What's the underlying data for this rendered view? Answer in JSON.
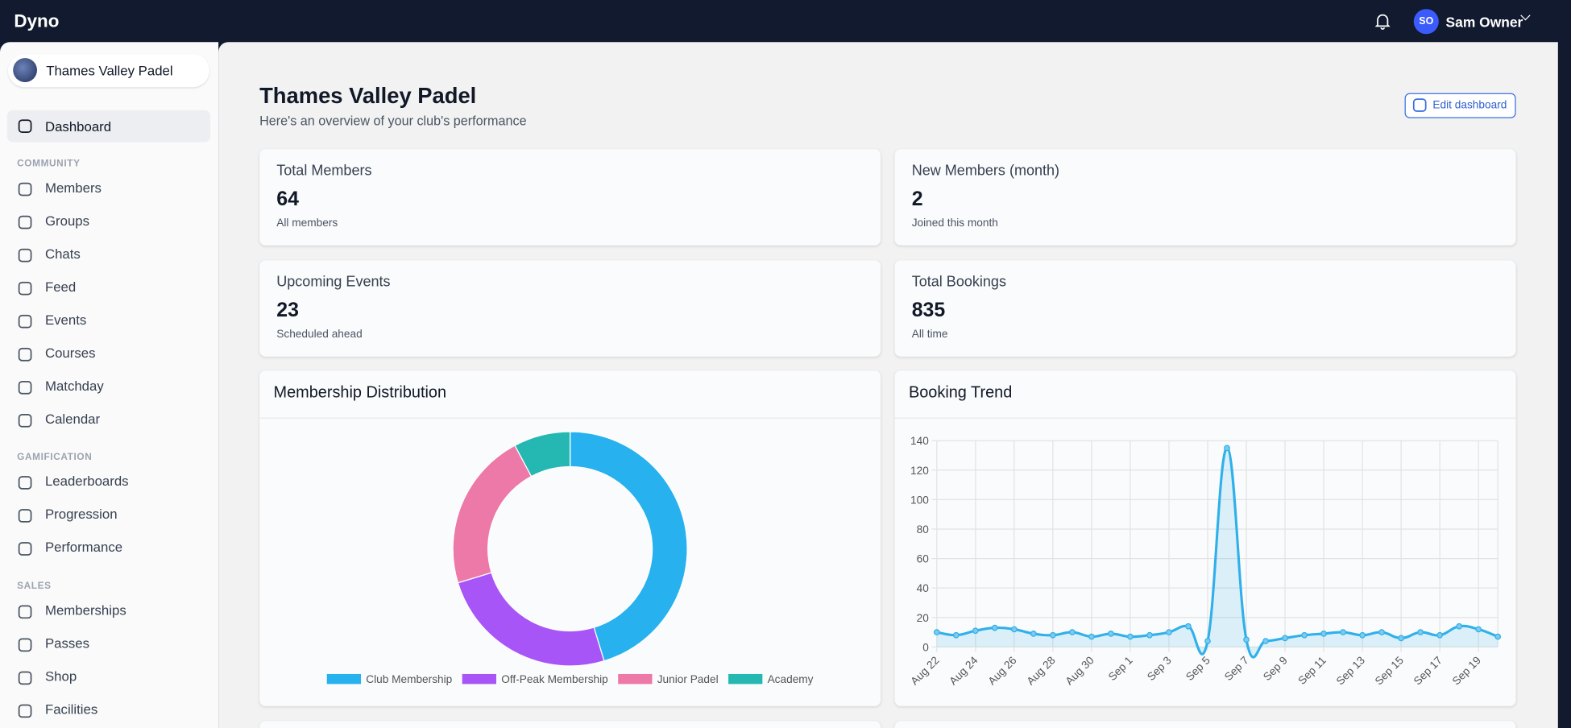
{
  "topbar": {
    "brand": "Dyno",
    "user_initials": "SO",
    "user_name": "Sam Owner"
  },
  "sidebar": {
    "club": "Thames Valley Padel",
    "top": [
      "Dashboard"
    ],
    "sections": [
      {
        "title": "COMMUNITY",
        "items": [
          "Members",
          "Groups",
          "Chats",
          "Feed",
          "Events",
          "Courses",
          "Matchday",
          "Calendar"
        ]
      },
      {
        "title": "GAMIFICATION",
        "items": [
          "Leaderboards",
          "Progression",
          "Performance"
        ]
      },
      {
        "title": "SALES",
        "items": [
          "Memberships",
          "Passes",
          "Shop",
          "Facilities"
        ]
      }
    ]
  },
  "header": {
    "title": "Thames Valley Padel",
    "subtitle": "Here's an overview of your club's performance",
    "button": "Edit dashboard"
  },
  "stats": [
    {
      "label": "Total Members",
      "value": 64,
      "note": "All members"
    },
    {
      "label": "New Members (month)",
      "value": 2,
      "note": "Joined this month"
    },
    {
      "label": "Upcoming Events",
      "value": 23,
      "note": "Scheduled ahead"
    },
    {
      "label": "Total Bookings",
      "value": 835,
      "note": "All time"
    }
  ],
  "chart_data": [
    {
      "type": "donut",
      "title": "Membership Distribution",
      "categories": [
        "Club Membership",
        "Off-Peak Membership",
        "Junior Padel",
        "Academy"
      ],
      "values": [
        29,
        16,
        14,
        5
      ],
      "colors": [
        "#27b1ef",
        "#a855f7",
        "#ec79a7",
        "#25b8b2"
      ]
    },
    {
      "type": "line",
      "title": "Booking Trend",
      "categories": [
        "Aug 22",
        null,
        "Aug 24",
        null,
        "Aug 26",
        null,
        "Aug 28",
        null,
        "Aug 30",
        null,
        "Sep 1",
        null,
        "Sep 3",
        null,
        "Sep 5",
        null,
        "Sep 7",
        null,
        "Sep 9",
        null,
        "Sep 11",
        null,
        "Sep 13",
        null,
        "Sep 15",
        null,
        "Sep 17",
        null,
        "Sep 19",
        null
      ],
      "values": [
        10,
        8,
        11,
        13,
        12,
        9,
        8,
        10,
        7,
        9,
        7,
        8,
        10,
        14,
        4,
        135,
        5,
        4,
        6,
        8,
        9,
        10,
        8,
        10,
        6,
        10,
        8,
        14,
        12,
        7
      ],
      "color": "#2fb0ea",
      "ylim": [
        0,
        140
      ],
      "yticks": [
        0,
        20,
        40,
        60,
        80,
        100,
        120,
        140
      ],
      "grid": true
    }
  ]
}
